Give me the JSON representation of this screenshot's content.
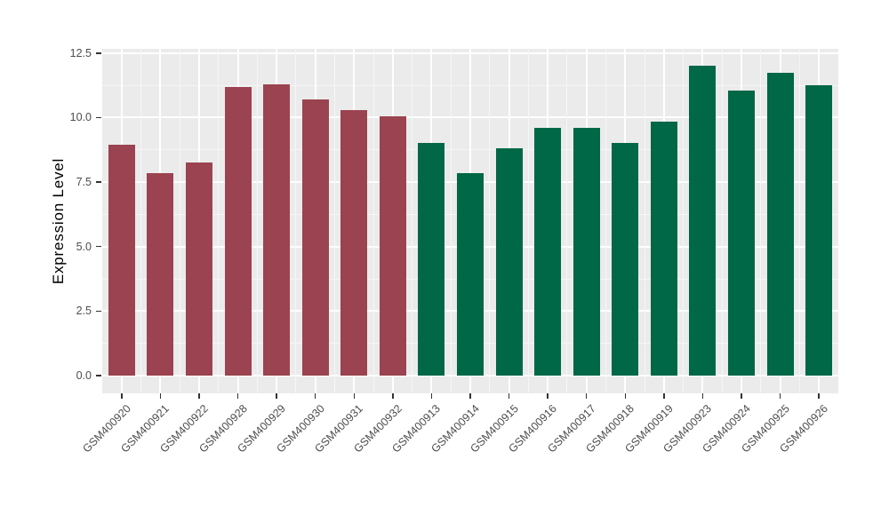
{
  "chart_data": {
    "type": "bar",
    "title": "",
    "xlabel": "",
    "ylabel": "Expression Level",
    "ylim": [
      0,
      12.67
    ],
    "yticks": [
      0,
      2.5,
      5,
      7.5,
      10,
      12.5
    ],
    "ytick_labels": [
      "0.0",
      "2.5",
      "5.0",
      "7.5",
      "10.0",
      "12.5"
    ],
    "yticks_minor": [
      1.25,
      3.75,
      6.25,
      8.75,
      11.25
    ],
    "grid": "on",
    "legend_position": "none",
    "categories": [
      "GSM400920",
      "GSM400921",
      "GSM400922",
      "GSM400928",
      "GSM400929",
      "GSM400930",
      "GSM400931",
      "GSM400932",
      "GSM400913",
      "GSM400914",
      "GSM400915",
      "GSM400916",
      "GSM400917",
      "GSM400918",
      "GSM400919",
      "GSM400923",
      "GSM400924",
      "GSM400925",
      "GSM400926"
    ],
    "series": [
      {
        "name": "Expression Level",
        "values": [
          8.95,
          7.85,
          8.25,
          11.2,
          11.3,
          10.7,
          10.3,
          10.05,
          9.0,
          7.85,
          8.8,
          9.6,
          9.6,
          9.0,
          9.85,
          12.0,
          11.05,
          11.75,
          11.25
        ]
      }
    ],
    "bar_groups": [
      "group1",
      "group1",
      "group1",
      "group1",
      "group1",
      "group1",
      "group1",
      "group1",
      "group2",
      "group2",
      "group2",
      "group2",
      "group2",
      "group2",
      "group2",
      "group2",
      "group2",
      "group2",
      "group2"
    ],
    "group_colors": {
      "group1": "#9B4350",
      "group2": "#006747"
    },
    "panel_background": "#EBEBEB",
    "grid_major_color": "#FFFFFF",
    "grid_minor_color": "#F6F6F6",
    "axis_tick_color": "#333333",
    "axis_text_color": "#4D4D4D",
    "axis_title_color": "#000000"
  }
}
